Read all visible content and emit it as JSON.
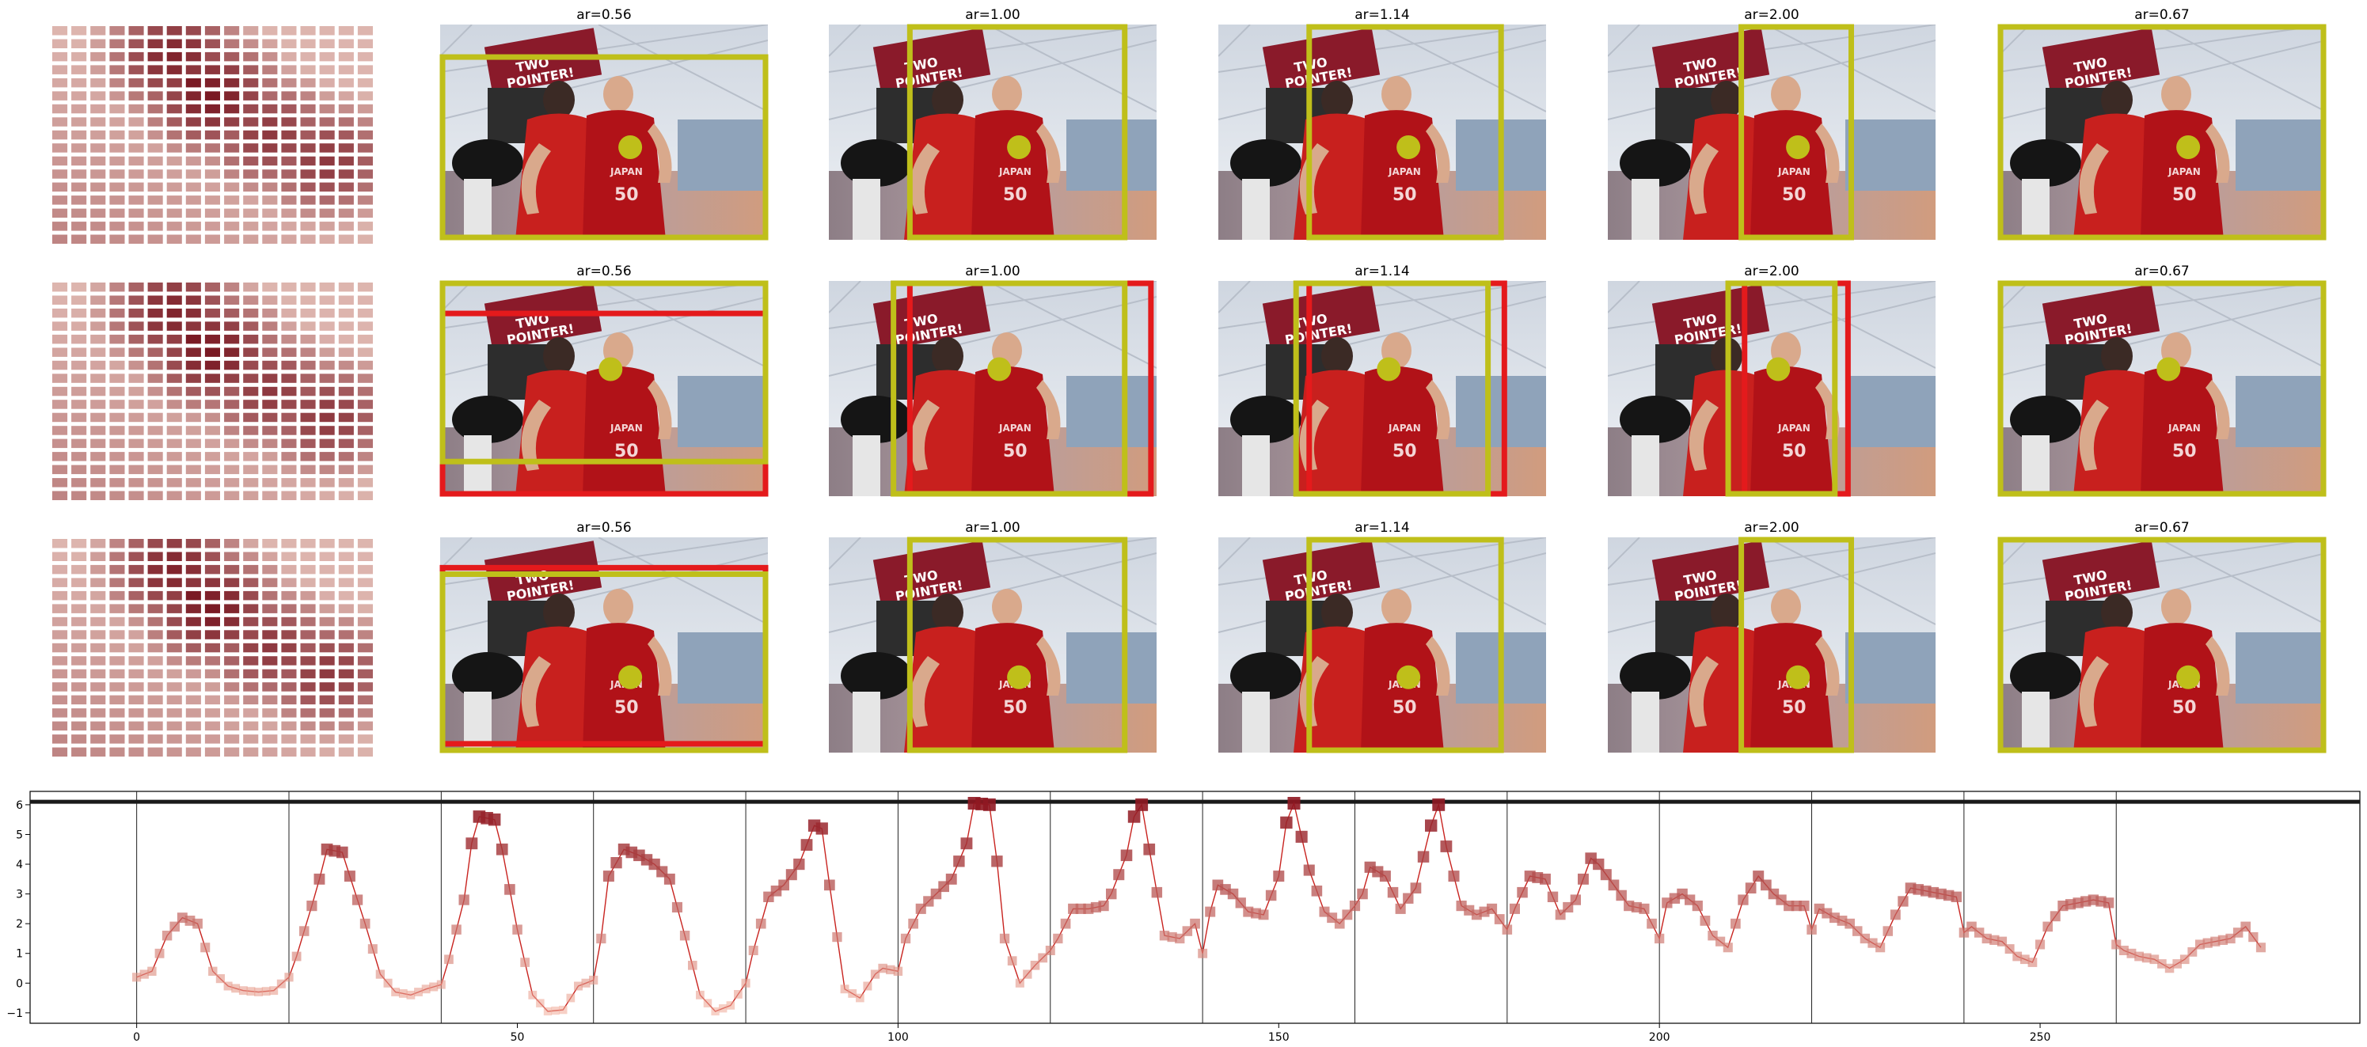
{
  "colors": {
    "crop_box": "#bfbf1a",
    "alt_box": "#e41a1c",
    "peak_dot": "#bfbf1a",
    "line": "#c8231f",
    "axis": "#000000",
    "separator": "#222222",
    "heat_low": "#fee8dc",
    "heat_high": "#7a1a24"
  },
  "panels": {
    "titles": [
      "ar=0.56",
      "ar=1.00",
      "ar=1.14",
      "ar=2.00",
      "ar=0.67"
    ],
    "rows": [
      {
        "crops": [
          {
            "yellow": [
              0,
              0.14,
              1,
              1
            ],
            "red": null,
            "dot": [
              0.58,
              0.57
            ]
          },
          {
            "yellow": [
              0.24,
              0,
              0.91,
              1
            ],
            "red": null,
            "dot": [
              0.58,
              0.57
            ]
          },
          {
            "yellow": [
              0.27,
              0,
              0.87,
              1
            ],
            "red": null,
            "dot": [
              0.58,
              0.57
            ]
          },
          {
            "yellow": [
              0.4,
              0,
              0.75,
              1
            ],
            "red": null,
            "dot": [
              0.58,
              0.57
            ]
          },
          {
            "yellow": [
              0,
              0,
              1,
              1
            ],
            "red": null,
            "dot": [
              0.58,
              0.57
            ]
          }
        ]
      },
      {
        "crops": [
          {
            "yellow": [
              0,
              0,
              1,
              0.85
            ],
            "red": [
              0,
              0.14,
              1,
              1
            ],
            "dot": [
              0.52,
              0.41
            ]
          },
          {
            "yellow": [
              0.19,
              0,
              0.91,
              1
            ],
            "red": [
              0.24,
              0,
              0.99,
              1
            ],
            "dot": [
              0.52,
              0.41
            ]
          },
          {
            "yellow": [
              0.23,
              0,
              0.83,
              1
            ],
            "red": [
              0.27,
              0,
              0.88,
              1
            ],
            "dot": [
              0.52,
              0.41
            ]
          },
          {
            "yellow": [
              0.36,
              0,
              0.7,
              1
            ],
            "red": [
              0.41,
              0,
              0.74,
              1
            ],
            "dot": [
              0.52,
              0.41
            ]
          },
          {
            "yellow": [
              0,
              0,
              1,
              1
            ],
            "red": null,
            "dot": [
              0.52,
              0.41
            ]
          }
        ]
      },
      {
        "crops": [
          {
            "yellow": [
              0,
              0.16,
              1,
              1
            ],
            "red": [
              0,
              0.13,
              1,
              0.97
            ],
            "dot": [
              0.58,
              0.65
            ]
          },
          {
            "yellow": [
              0.24,
              0,
              0.91,
              1
            ],
            "red": null,
            "dot": [
              0.58,
              0.65
            ]
          },
          {
            "yellow": [
              0.27,
              0,
              0.87,
              1
            ],
            "red": null,
            "dot": [
              0.58,
              0.65
            ]
          },
          {
            "yellow": [
              0.4,
              0,
              0.75,
              1
            ],
            "red": null,
            "dot": [
              0.58,
              0.65
            ]
          },
          {
            "yellow": [
              0,
              0,
              1,
              1
            ],
            "red": null,
            "dot": [
              0.58,
              0.65
            ]
          }
        ]
      }
    ]
  },
  "saliency_grid": {
    "rows": 17,
    "cols": 17,
    "peak_rc": [
      4,
      7
    ],
    "ridge_rc": [
      [
        2,
        6
      ],
      [
        5,
        8
      ],
      [
        8,
        11
      ],
      [
        10,
        14
      ]
    ]
  },
  "chart_data": {
    "type": "line",
    "title": "",
    "xlabel": "",
    "ylabel": "",
    "xlim": [
      -14,
      292
    ],
    "ylim": [
      -1.35,
      6.45
    ],
    "x_ticks": [
      0,
      50,
      100,
      150,
      200,
      250
    ],
    "y_ticks": [
      -1,
      0,
      1,
      2,
      3,
      4,
      5,
      6
    ],
    "reference_line_y": 6.1,
    "segment_boundaries": [
      0,
      20,
      40,
      60,
      80,
      100,
      120,
      140,
      160,
      180,
      200,
      220,
      240,
      260
    ],
    "grid": false,
    "keypoints": [
      [
        0,
        0.2
      ],
      [
        2,
        0.4
      ],
      [
        4,
        1.6
      ],
      [
        6,
        2.2
      ],
      [
        8,
        2.0
      ],
      [
        10,
        0.4
      ],
      [
        12,
        -0.1
      ],
      [
        14,
        -0.25
      ],
      [
        16,
        -0.3
      ],
      [
        18,
        -0.25
      ],
      [
        20,
        0.2
      ],
      [
        21,
        0.9
      ],
      [
        23,
        2.6
      ],
      [
        24,
        3.5
      ],
      [
        25,
        4.5
      ],
      [
        27,
        4.4
      ],
      [
        28,
        3.6
      ],
      [
        30,
        2.0
      ],
      [
        32,
        0.3
      ],
      [
        34,
        -0.3
      ],
      [
        36,
        -0.4
      ],
      [
        38,
        -0.2
      ],
      [
        40,
        -0.05
      ],
      [
        41,
        0.8
      ],
      [
        43,
        2.8
      ],
      [
        44,
        4.7
      ],
      [
        45,
        5.6
      ],
      [
        47,
        5.5
      ],
      [
        48,
        4.5
      ],
      [
        50,
        1.8
      ],
      [
        52,
        -0.4
      ],
      [
        54,
        -0.95
      ],
      [
        56,
        -0.9
      ],
      [
        58,
        -0.1
      ],
      [
        60,
        0.1
      ],
      [
        61,
        1.5
      ],
      [
        62,
        3.6
      ],
      [
        64,
        4.5
      ],
      [
        66,
        4.3
      ],
      [
        68,
        4.0
      ],
      [
        70,
        3.5
      ],
      [
        72,
        1.6
      ],
      [
        74,
        -0.4
      ],
      [
        76,
        -0.95
      ],
      [
        78,
        -0.75
      ],
      [
        80,
        0.0
      ],
      [
        81,
        1.1
      ],
      [
        83,
        2.9
      ],
      [
        85,
        3.3
      ],
      [
        87,
        4.0
      ],
      [
        89,
        5.3
      ],
      [
        90,
        5.2
      ],
      [
        91,
        3.3
      ],
      [
        93,
        -0.2
      ],
      [
        95,
        -0.5
      ],
      [
        97,
        0.3
      ],
      [
        98,
        0.5
      ],
      [
        100,
        0.4
      ],
      [
        101,
        1.5
      ],
      [
        103,
        2.5
      ],
      [
        105,
        3.0
      ],
      [
        107,
        3.5
      ],
      [
        109,
        4.7
      ],
      [
        110,
        6.05
      ],
      [
        112,
        6.0
      ],
      [
        113,
        4.1
      ],
      [
        114,
        1.5
      ],
      [
        116,
        0.0
      ],
      [
        118,
        0.6
      ],
      [
        120,
        1.1
      ],
      [
        121,
        1.5
      ],
      [
        123,
        2.5
      ],
      [
        125,
        2.5
      ],
      [
        127,
        2.6
      ],
      [
        128,
        3.0
      ],
      [
        130,
        4.3
      ],
      [
        131,
        5.6
      ],
      [
        132,
        6.0
      ],
      [
        133,
        4.5
      ],
      [
        135,
        1.6
      ],
      [
        137,
        1.5
      ],
      [
        139,
        2.0
      ],
      [
        140,
        1.0
      ],
      [
        141,
        2.4
      ],
      [
        142,
        3.3
      ],
      [
        144,
        3.0
      ],
      [
        146,
        2.4
      ],
      [
        148,
        2.3
      ],
      [
        150,
        3.6
      ],
      [
        151,
        5.4
      ],
      [
        152,
        6.05
      ],
      [
        154,
        3.8
      ],
      [
        156,
        2.4
      ],
      [
        158,
        2.0
      ],
      [
        160,
        2.6
      ],
      [
        161,
        3.0
      ],
      [
        162,
        3.9
      ],
      [
        164,
        3.6
      ],
      [
        166,
        2.5
      ],
      [
        168,
        3.2
      ],
      [
        170,
        5.3
      ],
      [
        171,
        6.0
      ],
      [
        172,
        4.6
      ],
      [
        174,
        2.6
      ],
      [
        176,
        2.3
      ],
      [
        178,
        2.5
      ],
      [
        180,
        1.8
      ],
      [
        181,
        2.5
      ],
      [
        183,
        3.6
      ],
      [
        185,
        3.5
      ],
      [
        187,
        2.3
      ],
      [
        189,
        2.8
      ],
      [
        191,
        4.2
      ],
      [
        192,
        4.0
      ],
      [
        194,
        3.3
      ],
      [
        196,
        2.6
      ],
      [
        198,
        2.5
      ],
      [
        200,
        1.5
      ],
      [
        201,
        2.7
      ],
      [
        203,
        3.0
      ],
      [
        205,
        2.6
      ],
      [
        207,
        1.6
      ],
      [
        209,
        1.2
      ],
      [
        211,
        2.8
      ],
      [
        213,
        3.6
      ],
      [
        215,
        3.0
      ],
      [
        217,
        2.6
      ],
      [
        219,
        2.6
      ],
      [
        220,
        1.8
      ],
      [
        221,
        2.5
      ],
      [
        223,
        2.2
      ],
      [
        225,
        2.0
      ],
      [
        227,
        1.5
      ],
      [
        229,
        1.2
      ],
      [
        231,
        2.3
      ],
      [
        233,
        3.2
      ],
      [
        235,
        3.1
      ],
      [
        237,
        3.0
      ],
      [
        239,
        2.9
      ],
      [
        240,
        1.7
      ],
      [
        241,
        1.9
      ],
      [
        243,
        1.5
      ],
      [
        245,
        1.4
      ],
      [
        247,
        0.9
      ],
      [
        249,
        0.7
      ],
      [
        251,
        1.9
      ],
      [
        253,
        2.6
      ],
      [
        255,
        2.7
      ],
      [
        257,
        2.8
      ],
      [
        259,
        2.7
      ],
      [
        260,
        1.3
      ],
      [
        261,
        1.1
      ],
      [
        263,
        0.9
      ],
      [
        265,
        0.8
      ],
      [
        267,
        0.5
      ],
      [
        269,
        0.8
      ],
      [
        271,
        1.3
      ],
      [
        273,
        1.4
      ],
      [
        275,
        1.5
      ],
      [
        277,
        1.9
      ],
      [
        279,
        1.2
      ]
    ]
  }
}
